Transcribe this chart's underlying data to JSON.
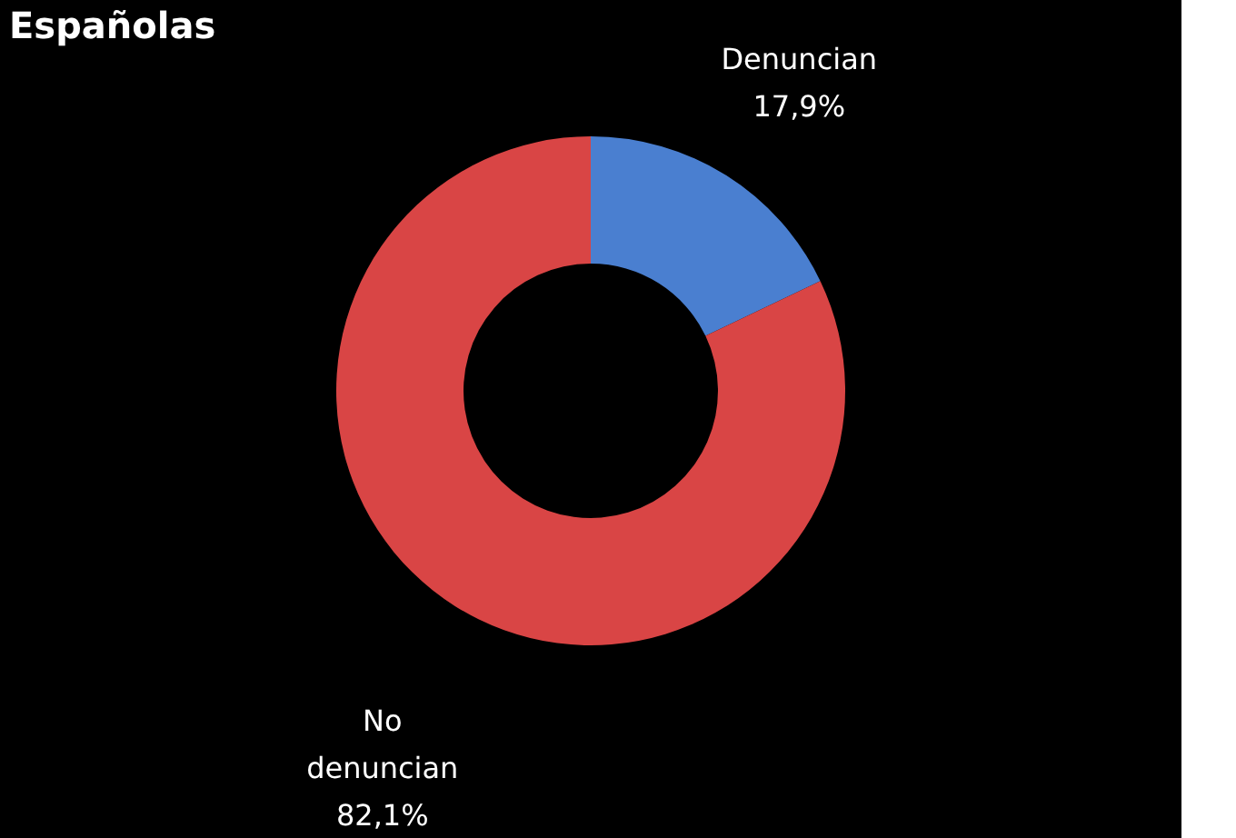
{
  "chart_data": {
    "type": "donut",
    "title": "Españolas",
    "categories": [
      "Denuncian",
      "No denuncian"
    ],
    "values": [
      17.9,
      82.1
    ],
    "colors": [
      "#4a7fd0",
      "#d94545"
    ],
    "value_labels": [
      "17,9%",
      "82,1%"
    ],
    "legend": false
  }
}
